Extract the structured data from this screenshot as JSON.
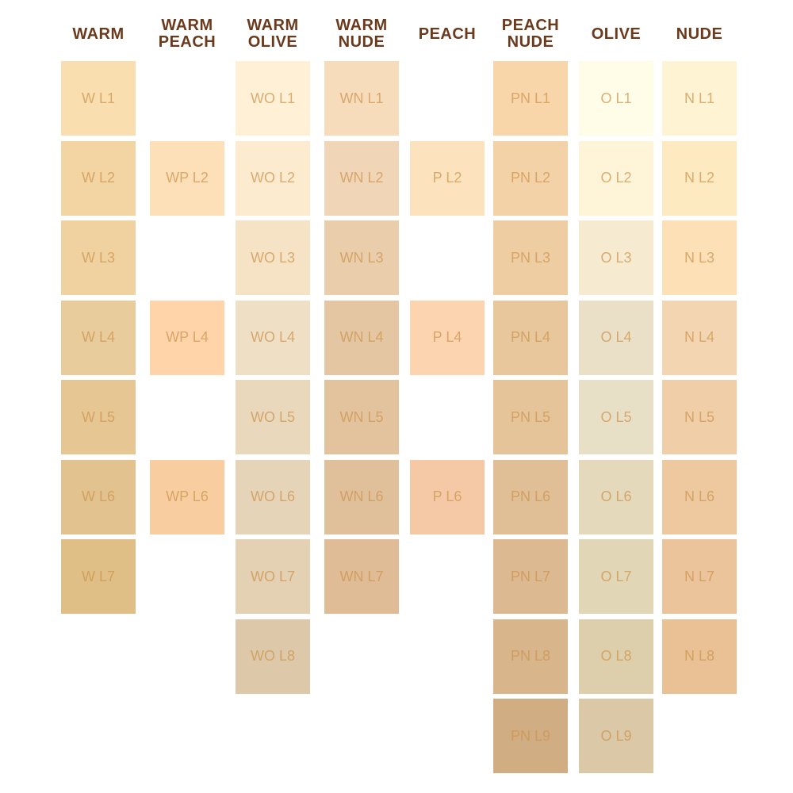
{
  "colors": {
    "header": "#6b3a1c",
    "label": "#cd9650"
  },
  "columns": [
    {
      "title": [
        "WARM"
      ],
      "swatches": [
        {
          "label": "W L1",
          "color": "#f9dfb0"
        },
        {
          "label": "W L2",
          "color": "#f3d5a3"
        },
        {
          "label": "W L3",
          "color": "#efd2a0"
        },
        {
          "label": "W L4",
          "color": "#e8cc9b"
        },
        {
          "label": "W L5",
          "color": "#e6c692"
        },
        {
          "label": "W L6",
          "color": "#e2c28e"
        },
        {
          "label": "W L7",
          "color": "#dfbf85"
        }
      ]
    },
    {
      "title": [
        "WARM",
        "PEACH"
      ],
      "swatches": [
        {
          "label": "WP L2",
          "color": "#fde0b8"
        },
        {
          "label": "WP L4",
          "color": "#fed4a8"
        },
        {
          "label": "WP L6",
          "color": "#f8cea0"
        }
      ]
    },
    {
      "title": [
        "WARM",
        "OLIVE"
      ],
      "swatches": [
        {
          "label": "WO L1",
          "color": "#fff0d6"
        },
        {
          "label": "WO L2",
          "color": "#fdebd0"
        },
        {
          "label": "WO L3",
          "color": "#f6e3c6"
        },
        {
          "label": "WO L4",
          "color": "#efdfc4"
        },
        {
          "label": "WO L5",
          "color": "#e9d8bc"
        },
        {
          "label": "WO L6",
          "color": "#e6d4b8"
        },
        {
          "label": "WO L7",
          "color": "#e4d0b2"
        },
        {
          "label": "WO L8",
          "color": "#ddc9aa"
        }
      ]
    },
    {
      "title": [
        "WARM",
        "NUDE"
      ],
      "swatches": [
        {
          "label": "WN L1",
          "color": "#f7dcbc"
        },
        {
          "label": "WN L2",
          "color": "#f0d5b6"
        },
        {
          "label": "WN L3",
          "color": "#eacdaa"
        },
        {
          "label": "WN L4",
          "color": "#e4c6a3"
        },
        {
          "label": "WN L5",
          "color": "#e3c29e"
        },
        {
          "label": "WN L6",
          "color": "#e0c09a"
        },
        {
          "label": "WN L7",
          "color": "#dfbc95"
        }
      ]
    },
    {
      "title": [
        "PEACH"
      ],
      "swatches": [
        {
          "label": "P L2",
          "color": "#fde3bd"
        },
        {
          "label": "P L4",
          "color": "#fdd4b0"
        },
        {
          "label": "P L6",
          "color": "#f5c9a5"
        }
      ]
    },
    {
      "title": [
        "PEACH",
        "NUDE"
      ],
      "swatches": [
        {
          "label": "PN L1",
          "color": "#f9d6aa"
        },
        {
          "label": "PN L2",
          "color": "#f4d2a7"
        },
        {
          "label": "PN L3",
          "color": "#efcda2"
        },
        {
          "label": "PN L4",
          "color": "#e8c79d"
        },
        {
          "label": "PN L5",
          "color": "#e6c49a"
        },
        {
          "label": "PN L6",
          "color": "#e0be96"
        },
        {
          "label": "PN L7",
          "color": "#dcb990"
        },
        {
          "label": "PN L8",
          "color": "#d8b58b"
        },
        {
          "label": "PN L9",
          "color": "#d1ad83"
        }
      ]
    },
    {
      "title": [
        "OLIVE"
      ],
      "swatches": [
        {
          "label": "O L1",
          "color": "#fffde7"
        },
        {
          "label": "O L2",
          "color": "#fef5d8"
        },
        {
          "label": "O L3",
          "color": "#f6ead1"
        },
        {
          "label": "O L4",
          "color": "#eae0c8"
        },
        {
          "label": "O L5",
          "color": "#e8e0c6"
        },
        {
          "label": "O L6",
          "color": "#e4d9ba"
        },
        {
          "label": "O L7",
          "color": "#e1d6b5"
        },
        {
          "label": "O L8",
          "color": "#ddcfab"
        },
        {
          "label": "O L9",
          "color": "#dbc8a6"
        }
      ]
    },
    {
      "title": [
        "NUDE"
      ],
      "swatches": [
        {
          "label": "N L1",
          "color": "#fef3d2"
        },
        {
          "label": "N L2",
          "color": "#feeac1"
        },
        {
          "label": "N L3",
          "color": "#fde0b6"
        },
        {
          "label": "N L4",
          "color": "#f3d6b1"
        },
        {
          "label": "N L5",
          "color": "#efcea8"
        },
        {
          "label": "N L6",
          "color": "#eec9a0"
        },
        {
          "label": "N L7",
          "color": "#ebc49b"
        },
        {
          "label": "N L8",
          "color": "#e9c194"
        }
      ]
    }
  ]
}
